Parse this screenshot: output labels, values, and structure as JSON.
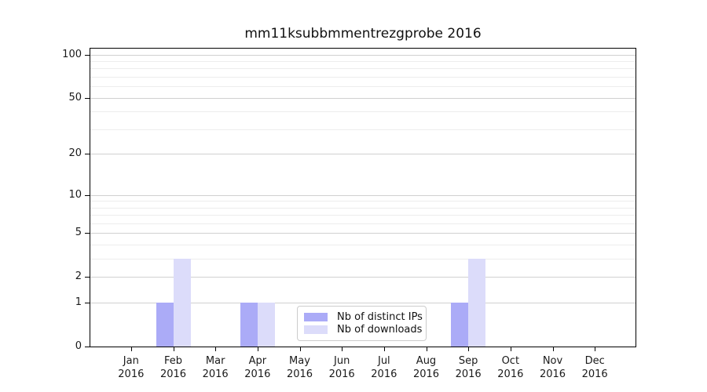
{
  "chart_data": {
    "type": "bar",
    "title": "mm11ksubbmmentrezgprobe 2016",
    "categories": [
      "Jan",
      "Feb",
      "Mar",
      "Apr",
      "May",
      "Jun",
      "Jul",
      "Aug",
      "Sep",
      "Oct",
      "Nov",
      "Dec"
    ],
    "category_year": "2016",
    "series": [
      {
        "name": "Nb of distinct IPs",
        "color": "#ababf7",
        "values": [
          0,
          1,
          0,
          1,
          0,
          0,
          0,
          0,
          1,
          0,
          0,
          0
        ]
      },
      {
        "name": "Nb of downloads",
        "color": "#dcdcfa",
        "values": [
          0,
          3,
          0,
          1,
          0,
          0,
          0,
          0,
          3,
          0,
          0,
          0
        ]
      }
    ],
    "xlabel": "",
    "ylabel": "",
    "y_scale": "log1p",
    "y_ticks": [
      0,
      1,
      2,
      5,
      10,
      20,
      50,
      100
    ],
    "y_minor_gridlines": [
      3,
      4,
      6,
      7,
      8,
      9,
      30,
      40,
      60,
      70,
      80,
      90
    ],
    "ylim": [
      0,
      110
    ],
    "grid": "horizontal",
    "legend_position": "lower center",
    "colors": {
      "major_grid": "#d0d0d0",
      "minor_grid": "#ededed",
      "spine": "#000000",
      "legend_border": "#cccccc",
      "background": "#ffffff"
    }
  }
}
